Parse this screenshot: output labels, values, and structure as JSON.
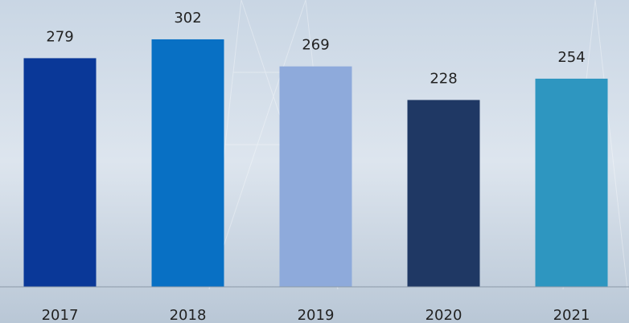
{
  "chart_data": {
    "type": "bar",
    "categories": [
      "2017",
      "2018",
      "2019",
      "2020",
      "2021"
    ],
    "values": [
      279,
      302,
      269,
      228,
      254
    ],
    "colors": [
      "#0a3898",
      "#0870c4",
      "#8eaadb",
      "#1f3864",
      "#2e96c0"
    ],
    "ylim": [
      0,
      350
    ],
    "data_labels": true
  }
}
